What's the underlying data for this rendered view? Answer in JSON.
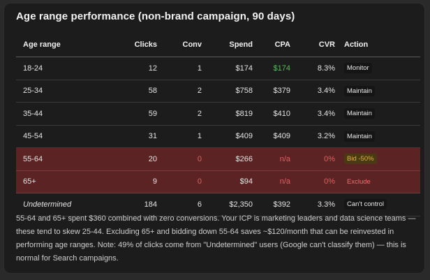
{
  "title": "Age range performance (non-brand campaign, 90 days)",
  "columns": {
    "age": "Age range",
    "clicks": "Clicks",
    "conv": "Conv",
    "spend": "Spend",
    "cpa": "CPA",
    "cvr": "CVR",
    "action": "Action"
  },
  "rows": [
    {
      "age": "18-24",
      "clicks": "12",
      "conv": "1",
      "spend": "$174",
      "cpa": "$174",
      "cvr": "8.3%",
      "action": "Monitor"
    },
    {
      "age": "25-34",
      "clicks": "58",
      "conv": "2",
      "spend": "$758",
      "cpa": "$379",
      "cvr": "3.4%",
      "action": "Maintain"
    },
    {
      "age": "35-44",
      "clicks": "59",
      "conv": "2",
      "spend": "$819",
      "cpa": "$410",
      "cvr": "3.4%",
      "action": "Maintain"
    },
    {
      "age": "45-54",
      "clicks": "31",
      "conv": "1",
      "spend": "$409",
      "cpa": "$409",
      "cvr": "3.2%",
      "action": "Maintain"
    },
    {
      "age": "55-64",
      "clicks": "20",
      "conv": "0",
      "spend": "$266",
      "cpa": "n/a",
      "cvr": "0%",
      "action": "Bid -50%"
    },
    {
      "age": "65+",
      "clicks": "9",
      "conv": "0",
      "spend": "$94",
      "cpa": "n/a",
      "cvr": "0%",
      "action": "Exclude"
    },
    {
      "age": "Undetermined",
      "clicks": "184",
      "conv": "6",
      "spend": "$2,350",
      "cpa": "$392",
      "cvr": "3.3%",
      "action": "Can't control"
    }
  ],
  "note": "55-64 and 65+ spent $360 combined with zero conversions. Your ICP is marketing leaders and data science teams — these tend to skew 25-44. Excluding 65+ and bidding down 55-64 saves ~$120/month that can be reinvested in performing age ranges. Note: 49% of clicks come from \"Undetermined\" users (Google can't classify them) — this is normal for Search campaigns.",
  "colors": {
    "card_bg": "#1c1c1c",
    "bad_row_bg": "#5b2323",
    "red_text": "#e06060",
    "green_text": "#5cb85c",
    "bid_badge_bg": "#4a3a14",
    "bid_badge_text": "#e0b040"
  }
}
